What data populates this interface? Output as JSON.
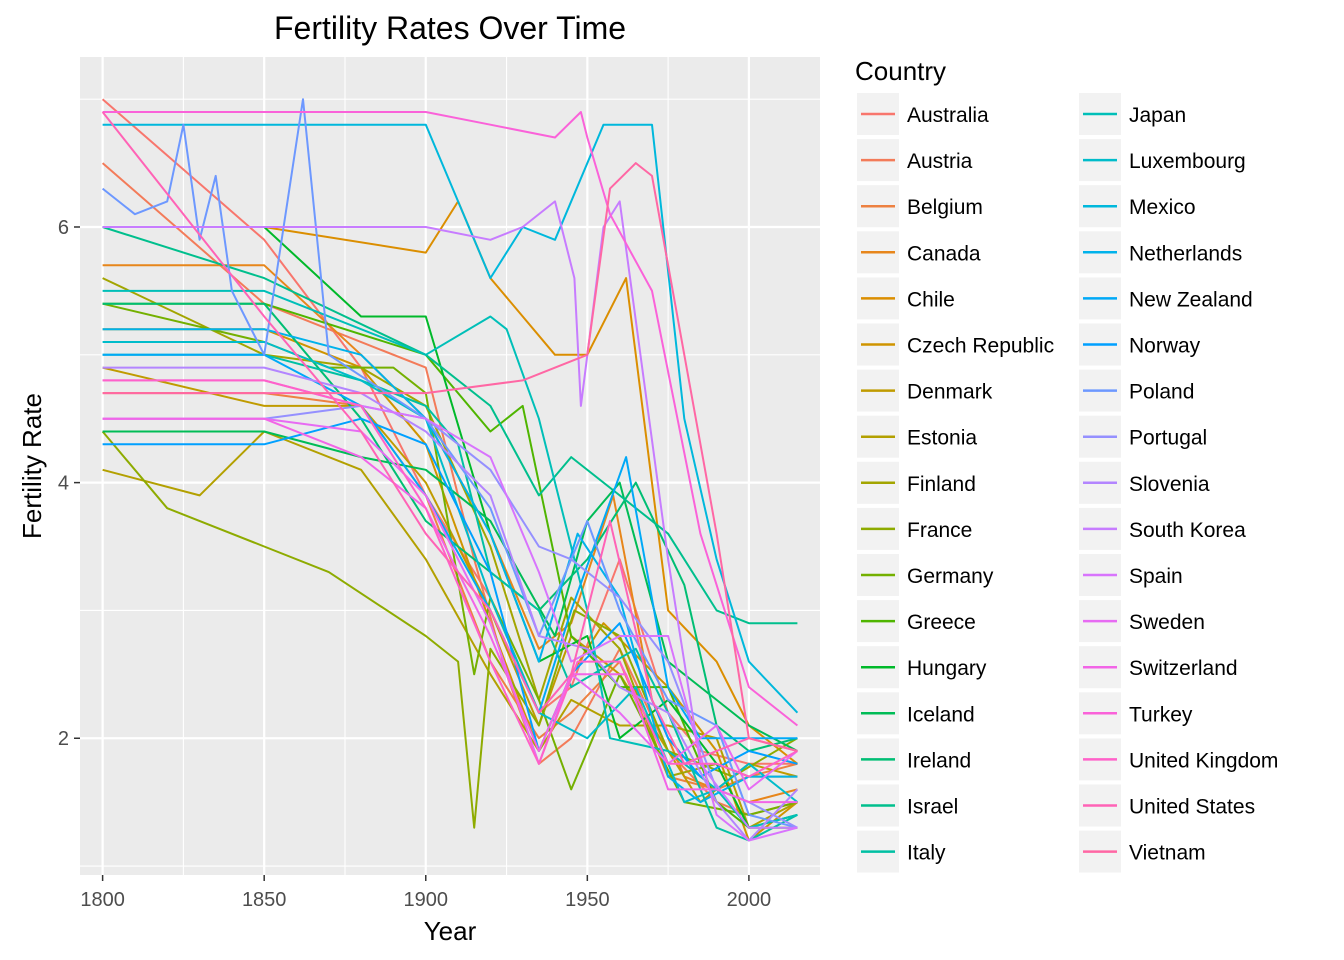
{
  "chart_data": {
    "type": "line",
    "title": "Fertility Rates Over Time",
    "xlabel": "Year",
    "ylabel": "Fertility Rate",
    "xlim": [
      1793,
      2022
    ],
    "ylim": [
      0.93,
      7.33
    ],
    "x_ticks": [
      1800,
      1850,
      1900,
      1950,
      2000
    ],
    "y_ticks": [
      2,
      4,
      6
    ],
    "x_tick_labels": [
      "1800",
      "1850",
      "1900",
      "1950",
      "2000"
    ],
    "y_tick_labels": [
      "2",
      "4",
      "6"
    ],
    "grid": true,
    "legend_title": "Country",
    "legend_position": "right",
    "series": [
      {
        "name": "Australia",
        "color": "#F8766D",
        "x": [
          1800,
          1850,
          1880,
          1900,
          1920,
          1935,
          1945,
          1960,
          1975,
          1985,
          2000,
          2015
        ],
        "y": [
          7.0,
          5.9,
          4.9,
          3.9,
          3.1,
          2.2,
          2.4,
          3.4,
          2.2,
          1.9,
          1.8,
          1.8
        ]
      },
      {
        "name": "Austria",
        "color": "#F37B59",
        "x": [
          1800,
          1850,
          1900,
          1915,
          1925,
          1935,
          1945,
          1960,
          1975,
          1990,
          2000,
          2015
        ],
        "y": [
          6.5,
          5.4,
          4.9,
          3.4,
          2.5,
          1.8,
          2.0,
          2.7,
          1.9,
          1.5,
          1.4,
          1.5
        ]
      },
      {
        "name": "Belgium",
        "color": "#ED8141",
        "x": [
          1800,
          1850,
          1880,
          1900,
          1920,
          1935,
          1945,
          1960,
          1975,
          1990,
          2000,
          2015
        ],
        "y": [
          4.7,
          4.7,
          4.6,
          3.9,
          2.6,
          2.0,
          2.2,
          2.6,
          1.7,
          1.6,
          1.7,
          1.8
        ]
      },
      {
        "name": "Canada",
        "color": "#E7861B",
        "x": [
          1800,
          1850,
          1880,
          1900,
          1920,
          1935,
          1945,
          1958,
          1970,
          1980,
          2000,
          2015
        ],
        "y": [
          5.7,
          5.7,
          5.0,
          4.5,
          3.6,
          2.7,
          2.9,
          3.9,
          2.3,
          1.7,
          1.5,
          1.6
        ]
      },
      {
        "name": "Chile",
        "color": "#DB8E00",
        "x": [
          1800,
          1850,
          1900,
          1910,
          1920,
          1940,
          1950,
          1962,
          1975,
          1990,
          2000,
          2015
        ],
        "y": [
          6.0,
          6.0,
          5.8,
          6.2,
          5.6,
          5.0,
          5.0,
          5.6,
          3.0,
          2.6,
          2.1,
          1.8
        ]
      },
      {
        "name": "Czech Republic",
        "color": "#CF9400",
        "x": [
          1800,
          1850,
          1880,
          1900,
          1920,
          1935,
          1945,
          1955,
          1975,
          1990,
          2000,
          2015
        ],
        "y": [
          5.2,
          5.2,
          4.9,
          4.3,
          2.9,
          1.9,
          2.5,
          2.9,
          2.4,
          1.9,
          1.2,
          1.5
        ]
      },
      {
        "name": "Denmark",
        "color": "#C09B00",
        "x": [
          1800,
          1850,
          1880,
          1900,
          1920,
          1935,
          1945,
          1960,
          1975,
          1985,
          2000,
          2015
        ],
        "y": [
          4.9,
          4.6,
          4.6,
          4.0,
          3.0,
          2.1,
          2.8,
          2.5,
          1.9,
          1.5,
          1.8,
          1.7
        ]
      },
      {
        "name": "Estonia",
        "color": "#B3A000",
        "x": [
          1800,
          1830,
          1850,
          1880,
          1900,
          1920,
          1935,
          1945,
          1960,
          1975,
          1990,
          2000,
          2015
        ],
        "y": [
          4.1,
          3.9,
          4.4,
          4.1,
          3.4,
          2.5,
          1.9,
          2.3,
          2.1,
          2.1,
          2.0,
          1.3,
          1.5
        ]
      },
      {
        "name": "Finland",
        "color": "#A3A500",
        "x": [
          1800,
          1850,
          1880,
          1900,
          1920,
          1935,
          1945,
          1960,
          1975,
          1990,
          2000,
          2015
        ],
        "y": [
          5.6,
          5.0,
          4.9,
          4.6,
          3.5,
          2.3,
          3.1,
          2.7,
          1.7,
          1.8,
          1.7,
          1.7
        ]
      },
      {
        "name": "France",
        "color": "#8EAB00",
        "x": [
          1800,
          1820,
          1850,
          1870,
          1900,
          1910,
          1915,
          1920,
          1935,
          1946,
          1960,
          1975,
          1995,
          2015
        ],
        "y": [
          4.4,
          3.8,
          3.5,
          3.3,
          2.8,
          2.6,
          1.3,
          2.7,
          2.1,
          3.0,
          2.8,
          1.9,
          1.7,
          2.0
        ]
      },
      {
        "name": "Germany",
        "color": "#74B000",
        "x": [
          1800,
          1850,
          1870,
          1890,
          1900,
          1915,
          1920,
          1935,
          1945,
          1960,
          1970,
          1980,
          2000,
          2015
        ],
        "y": [
          5.4,
          5.1,
          4.9,
          4.9,
          4.7,
          2.5,
          3.1,
          2.3,
          1.6,
          2.5,
          2.0,
          1.5,
          1.4,
          1.5
        ]
      },
      {
        "name": "Greece",
        "color": "#4FB500",
        "x": [
          1800,
          1850,
          1900,
          1920,
          1930,
          1945,
          1960,
          1975,
          1990,
          2000,
          2015
        ],
        "y": [
          5.4,
          5.4,
          5.0,
          4.4,
          4.6,
          2.8,
          2.4,
          2.4,
          1.5,
          1.3,
          1.3
        ]
      },
      {
        "name": "Hungary",
        "color": "#00B92A",
        "x": [
          1800,
          1850,
          1880,
          1900,
          1920,
          1935,
          1950,
          1960,
          1975,
          1990,
          2000,
          2015
        ],
        "y": [
          6.0,
          6.0,
          5.3,
          5.3,
          3.6,
          2.6,
          2.8,
          2.0,
          2.3,
          1.8,
          1.3,
          1.4
        ]
      },
      {
        "name": "Iceland",
        "color": "#00BC56",
        "x": [
          1800,
          1850,
          1880,
          1900,
          1920,
          1940,
          1950,
          1960,
          1975,
          1990,
          2000,
          2015
        ],
        "y": [
          4.4,
          4.4,
          4.2,
          4.1,
          3.7,
          2.8,
          3.7,
          4.0,
          2.6,
          2.3,
          2.1,
          1.9
        ]
      },
      {
        "name": "Ireland",
        "color": "#00BE74",
        "x": [
          1800,
          1850,
          1880,
          1900,
          1920,
          1935,
          1950,
          1965,
          1980,
          1990,
          2000,
          2015
        ],
        "y": [
          5.4,
          5.4,
          4.5,
          3.7,
          3.3,
          3.0,
          3.4,
          4.0,
          3.2,
          2.1,
          1.9,
          2.0
        ]
      },
      {
        "name": "Israel",
        "color": "#00BF8D",
        "x": [
          1800,
          1850,
          1900,
          1920,
          1935,
          1945,
          1960,
          1975,
          1990,
          2000,
          2015
        ],
        "y": [
          6.0,
          5.6,
          5.0,
          4.6,
          3.9,
          4.2,
          3.9,
          3.6,
          3.0,
          2.9,
          2.9
        ]
      },
      {
        "name": "Italy",
        "color": "#00C0A3",
        "x": [
          1800,
          1850,
          1880,
          1900,
          1910,
          1920,
          1935,
          1945,
          1965,
          1975,
          1990,
          2000,
          2015
        ],
        "y": [
          5.0,
          5.0,
          4.8,
          4.6,
          4.3,
          3.3,
          3.0,
          2.4,
          2.7,
          2.2,
          1.3,
          1.2,
          1.4
        ]
      },
      {
        "name": "Japan",
        "color": "#00BFB8",
        "x": [
          1800,
          1850,
          1900,
          1920,
          1925,
          1935,
          1950,
          1957,
          1975,
          1990,
          2000,
          2015
        ],
        "y": [
          5.5,
          5.5,
          5.0,
          5.3,
          5.2,
          4.5,
          3.0,
          2.0,
          1.9,
          1.6,
          1.3,
          1.4
        ]
      },
      {
        "name": "Luxembourg",
        "color": "#00BCCA",
        "x": [
          1800,
          1850,
          1880,
          1900,
          1920,
          1935,
          1950,
          1965,
          1980,
          1990,
          2000,
          2015
        ],
        "y": [
          5.1,
          5.1,
          4.8,
          4.5,
          3.1,
          2.2,
          2.0,
          2.4,
          1.5,
          1.6,
          1.8,
          1.5
        ]
      },
      {
        "name": "Mexico",
        "color": "#00B8DC",
        "x": [
          1800,
          1850,
          1900,
          1920,
          1930,
          1940,
          1955,
          1970,
          1980,
          1990,
          2000,
          2015
        ],
        "y": [
          6.8,
          6.8,
          6.8,
          5.6,
          6.0,
          5.9,
          6.8,
          6.8,
          4.5,
          3.4,
          2.6,
          2.2
        ]
      },
      {
        "name": "Netherlands",
        "color": "#00B2EB",
        "x": [
          1800,
          1850,
          1880,
          1900,
          1920,
          1935,
          1947,
          1960,
          1975,
          1985,
          2000,
          2015
        ],
        "y": [
          5.2,
          5.2,
          5.0,
          4.5,
          3.6,
          2.6,
          3.6,
          3.1,
          1.7,
          1.5,
          1.7,
          1.7
        ]
      },
      {
        "name": "New Zealand",
        "color": "#00A9F7",
        "x": [
          1800,
          1850,
          1880,
          1900,
          1920,
          1935,
          1945,
          1962,
          1975,
          1985,
          2000,
          2015
        ],
        "y": [
          5.0,
          5.0,
          4.6,
          3.9,
          3.0,
          2.2,
          3.0,
          4.2,
          2.4,
          2.0,
          2.0,
          2.0
        ]
      },
      {
        "name": "Norway",
        "color": "#00A0FF",
        "x": [
          1800,
          1850,
          1880,
          1900,
          1920,
          1935,
          1945,
          1960,
          1975,
          1985,
          2000,
          2015
        ],
        "y": [
          4.3,
          4.3,
          4.5,
          4.3,
          3.3,
          1.9,
          2.5,
          2.9,
          2.0,
          1.7,
          1.9,
          1.8
        ]
      },
      {
        "name": "Poland",
        "color": "#6D98FF",
        "x": [
          1800,
          1810,
          1820,
          1825,
          1830,
          1835,
          1840,
          1850,
          1862,
          1870,
          1900,
          1920,
          1935,
          1950,
          1960,
          1975,
          1990,
          2000,
          2015
        ],
        "y": [
          6.3,
          6.1,
          6.2,
          6.8,
          5.9,
          6.4,
          5.5,
          5.0,
          7.0,
          5.0,
          4.5,
          3.8,
          2.8,
          3.7,
          3.0,
          2.3,
          2.1,
          1.4,
          1.3
        ]
      },
      {
        "name": "Portugal",
        "color": "#9590FF",
        "x": [
          1800,
          1850,
          1880,
          1900,
          1920,
          1935,
          1945,
          1960,
          1975,
          1990,
          2000,
          2015
        ],
        "y": [
          4.5,
          4.5,
          4.6,
          4.5,
          4.1,
          3.5,
          3.4,
          3.1,
          2.6,
          1.6,
          1.5,
          1.3
        ]
      },
      {
        "name": "Slovenia",
        "color": "#B385FF",
        "x": [
          1800,
          1850,
          1880,
          1900,
          1920,
          1935,
          1950,
          1960,
          1975,
          1990,
          2000,
          2015
        ],
        "y": [
          4.9,
          4.9,
          4.7,
          4.4,
          3.9,
          2.8,
          2.7,
          2.4,
          2.2,
          1.5,
          1.2,
          1.6
        ]
      },
      {
        "name": "South Korea",
        "color": "#C77CFF",
        "x": [
          1800,
          1850,
          1900,
          1920,
          1930,
          1940,
          1946,
          1948,
          1955,
          1960,
          1975,
          1985,
          2000,
          2015
        ],
        "y": [
          6.0,
          6.0,
          6.0,
          5.9,
          6.0,
          6.2,
          5.6,
          4.6,
          6.0,
          6.2,
          3.4,
          1.8,
          1.3,
          1.3
        ]
      },
      {
        "name": "Spain",
        "color": "#D874FD",
        "x": [
          1800,
          1850,
          1880,
          1900,
          1920,
          1935,
          1945,
          1960,
          1975,
          1990,
          2000,
          2015
        ],
        "y": [
          4.8,
          4.8,
          4.6,
          4.5,
          4.2,
          3.3,
          2.6,
          2.8,
          2.8,
          1.4,
          1.2,
          1.3
        ]
      },
      {
        "name": "Sweden",
        "color": "#E76BF3",
        "x": [
          1800,
          1850,
          1880,
          1900,
          1920,
          1935,
          1945,
          1960,
          1975,
          1990,
          2000,
          2015
        ],
        "y": [
          4.5,
          4.5,
          4.4,
          3.9,
          2.9,
          1.8,
          2.5,
          2.2,
          1.8,
          2.1,
          1.6,
          1.9
        ]
      },
      {
        "name": "Switzerland",
        "color": "#F265E7",
        "x": [
          1800,
          1850,
          1880,
          1900,
          1920,
          1935,
          1945,
          1962,
          1975,
          1990,
          2000,
          2015
        ],
        "y": [
          4.5,
          4.5,
          4.2,
          3.8,
          2.8,
          1.9,
          2.5,
          2.5,
          1.6,
          1.6,
          1.5,
          1.5
        ]
      },
      {
        "name": "Turkey",
        "color": "#FA62D9",
        "x": [
          1800,
          1850,
          1900,
          1920,
          1940,
          1948,
          1950,
          1957,
          1970,
          1985,
          2000,
          2015
        ],
        "y": [
          6.9,
          6.9,
          6.9,
          6.8,
          6.7,
          6.9,
          6.7,
          6.1,
          5.5,
          3.6,
          2.4,
          2.1
        ]
      },
      {
        "name": "United Kingdom",
        "color": "#FF61C9",
        "x": [
          1800,
          1850,
          1880,
          1900,
          1920,
          1935,
          1947,
          1960,
          1975,
          1990,
          2000,
          2015
        ],
        "y": [
          4.8,
          4.8,
          4.6,
          3.8,
          2.6,
          1.8,
          2.6,
          2.6,
          1.8,
          1.8,
          1.7,
          1.9
        ]
      },
      {
        "name": "United States",
        "color": "#FF63B6",
        "x": [
          1800,
          1850,
          1880,
          1900,
          1920,
          1935,
          1945,
          1957,
          1970,
          1980,
          2000,
          2015
        ],
        "y": [
          6.9,
          5.3,
          4.4,
          3.6,
          3.0,
          2.2,
          2.5,
          3.7,
          2.3,
          1.8,
          2.0,
          1.9
        ]
      },
      {
        "name": "Vietnam",
        "color": "#FF67A4",
        "x": [
          1800,
          1850,
          1900,
          1930,
          1950,
          1957,
          1965,
          1970,
          1980,
          1990,
          2000,
          2015
        ],
        "y": [
          4.7,
          4.7,
          4.7,
          4.8,
          5.0,
          6.3,
          6.5,
          6.4,
          5.0,
          3.6,
          2.0,
          1.9
        ]
      }
    ]
  }
}
